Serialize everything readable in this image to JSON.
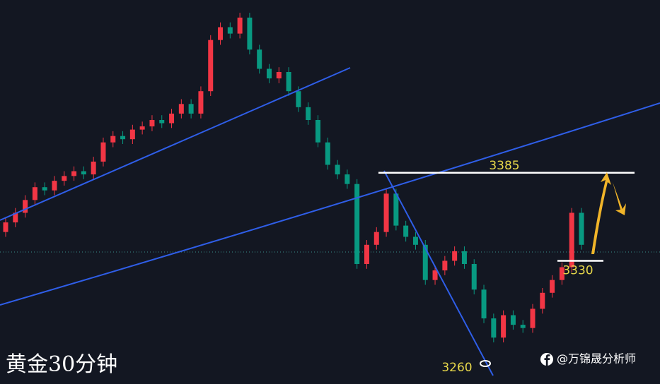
{
  "chart_data": {
    "type": "candlestick",
    "open": [
      3348,
      3354,
      3360,
      3368,
      3376,
      3374,
      3380,
      3383,
      3386,
      3384,
      3392,
      3404,
      3408,
      3406,
      3412,
      3414,
      3418,
      3416,
      3422,
      3428,
      3422,
      3436,
      3468,
      3476,
      3472,
      3482,
      3462,
      3450,
      3444,
      3448,
      3436,
      3426,
      3418,
      3404,
      3390,
      3384,
      3378,
      3328,
      3340,
      3348,
      3372,
      3352,
      3345,
      3340,
      3318,
      3324,
      3330,
      3336,
      3328,
      3312,
      3294,
      3282,
      3296,
      3290,
      3288,
      3300,
      3310,
      3318,
      3326,
      3360
    ],
    "high": [
      3357,
      3363,
      3371,
      3379,
      3379,
      3383,
      3386,
      3389,
      3389,
      3395,
      3407,
      3411,
      3411,
      3415,
      3417,
      3421,
      3421,
      3425,
      3431,
      3431,
      3439,
      3471,
      3479,
      3479,
      3485,
      3485,
      3465,
      3453,
      3451,
      3451,
      3439,
      3429,
      3421,
      3407,
      3393,
      3387,
      3381,
      3343,
      3351,
      3375,
      3375,
      3355,
      3348,
      3343,
      3327,
      3333,
      3339,
      3339,
      3331,
      3315,
      3297,
      3299,
      3299,
      3293,
      3303,
      3313,
      3321,
      3329,
      3363,
      3363
    ],
    "low": [
      3345,
      3351,
      3357,
      3365,
      3371,
      3371,
      3377,
      3380,
      3381,
      3381,
      3389,
      3401,
      3403,
      3403,
      3409,
      3411,
      3413,
      3413,
      3419,
      3419,
      3419,
      3433,
      3465,
      3469,
      3469,
      3459,
      3447,
      3441,
      3441,
      3433,
      3423,
      3415,
      3401,
      3387,
      3381,
      3375,
      3325,
      3325,
      3337,
      3345,
      3349,
      3342,
      3337,
      3315,
      3315,
      3321,
      3327,
      3325,
      3309,
      3291,
      3279,
      3279,
      3287,
      3285,
      3285,
      3297,
      3307,
      3315,
      3323,
      3337
    ],
    "close": [
      3354,
      3360,
      3368,
      3376,
      3374,
      3380,
      3383,
      3386,
      3384,
      3392,
      3404,
      3408,
      3406,
      3412,
      3414,
      3418,
      3416,
      3422,
      3428,
      3422,
      3436,
      3468,
      3476,
      3472,
      3482,
      3462,
      3450,
      3444,
      3448,
      3436,
      3426,
      3418,
      3404,
      3390,
      3384,
      3378,
      3328,
      3340,
      3348,
      3372,
      3352,
      3345,
      3340,
      3318,
      3324,
      3330,
      3336,
      3328,
      3312,
      3294,
      3282,
      3296,
      3290,
      3288,
      3300,
      3310,
      3318,
      3326,
      3360,
      3340
    ],
    "ylim": [
      3253,
      3493
    ],
    "up_color": "#f23645",
    "down_color": "#089981",
    "levels": [
      3385,
      3330,
      3260
    ]
  },
  "watermark": {
    "title": "黄金30分钟",
    "author": "@万锦晟分析师"
  }
}
